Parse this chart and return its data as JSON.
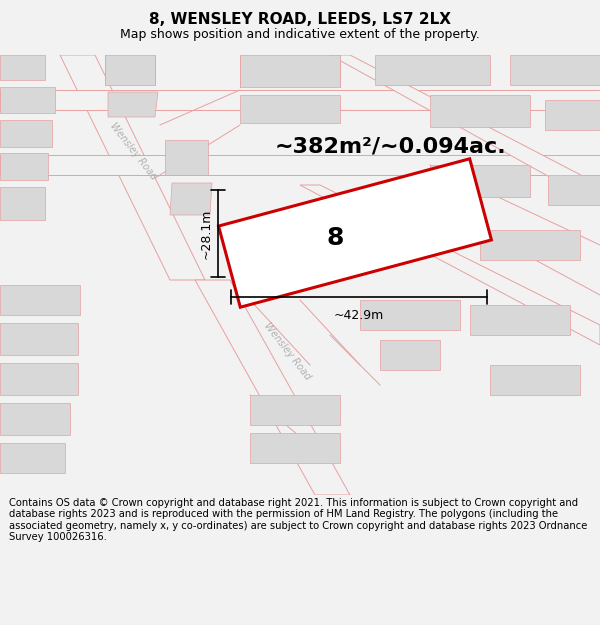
{
  "title": "8, WENSLEY ROAD, LEEDS, LS7 2LX",
  "subtitle": "Map shows position and indicative extent of the property.",
  "area_text": "~382m²/~0.094ac.",
  "width_label": "~42.9m",
  "height_label": "~28.1m",
  "plot_number": "8",
  "footer_text": "Contains OS data © Crown copyright and database right 2021. This information is subject to Crown copyright and database rights 2023 and is reproduced with the permission of HM Land Registry. The polygons (including the associated geometry, namely x, y co-ordinates) are subject to Crown copyright and database rights 2023 Ordnance Survey 100026316.",
  "bg_color": "#f2f2f2",
  "map_bg_color": "#f2f2f2",
  "building_fill_color": "#d8d8d8",
  "road_line_color": "#e8a0a0",
  "property_line_color": "#cc0000",
  "property_fill_color": "#ffffff",
  "dim_line_color": "#000000",
  "text_color": "#000000",
  "road_label_color": "#aaaaaa",
  "title_fontsize": 11,
  "subtitle_fontsize": 9,
  "area_fontsize": 16,
  "dim_fontsize": 9,
  "plot_num_fontsize": 18,
  "footer_fontsize": 7.2,
  "road_lw": 0.7,
  "building_lw": 0.5
}
